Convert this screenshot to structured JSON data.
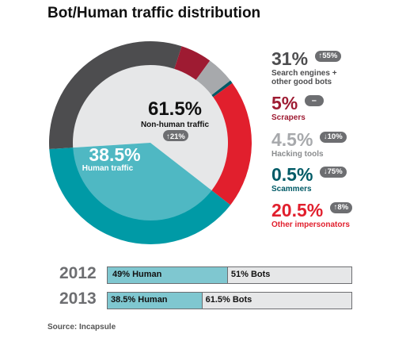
{
  "title": "Bot/Human traffic distribution",
  "chart_data": {
    "type": "pie",
    "title": "Bot/Human traffic distribution",
    "inner": [
      {
        "name": "Non-human traffic",
        "value": 61.5,
        "label": "61.5%",
        "change": "↑21%",
        "color": "#e6e7e8"
      },
      {
        "name": "Human traffic",
        "value": 38.5,
        "label": "38.5%",
        "color": "#4fb8c3"
      }
    ],
    "outer": [
      {
        "name": "Search engines + other good bots",
        "value": 31,
        "label": "31%",
        "change": "↑55%",
        "color": "#4d4d4f"
      },
      {
        "name": "Scrapers",
        "value": 5,
        "label": "5%",
        "change": "–",
        "color": "#9e1b32"
      },
      {
        "name": "Hacking tools",
        "value": 4.5,
        "label": "4.5%",
        "change": "↓10%",
        "color": "#a7a9ac"
      },
      {
        "name": "Scammers",
        "value": 0.5,
        "label": "0.5%",
        "change": "↓75%",
        "color": "#005a66"
      },
      {
        "name": "Other impersonators",
        "value": 20.5,
        "label": "20.5%",
        "change": "↑8%",
        "color": "#e11f2d"
      },
      {
        "name": "Human traffic",
        "value": 38.5,
        "color": "#009aa6"
      }
    ]
  },
  "legend": [
    {
      "pct": "31%",
      "change": "↑55%",
      "label_lines": [
        "Search engines +",
        "other good bots"
      ],
      "color": "#4d4d4f"
    },
    {
      "pct": "5%",
      "change": "–",
      "label_lines": [
        "Scrapers"
      ],
      "color": "#9e1b32"
    },
    {
      "pct": "4.5%",
      "change": "↓10%",
      "label_lines": [
        "Hacking tools"
      ],
      "color": "#a7a9ac"
    },
    {
      "pct": "0.5%",
      "change": "↓75%",
      "label_lines": [
        "Scammers"
      ],
      "color": "#005a66"
    },
    {
      "pct": "20.5%",
      "change": "↑8%",
      "label_lines": [
        "Other impersonators"
      ],
      "color": "#e11f2d"
    }
  ],
  "bars": [
    {
      "year": "2012",
      "human_label": "49% Human",
      "bots_label": "51% Bots",
      "human_pct": 49
    },
    {
      "year": "2013",
      "human_label": "38.5% Human",
      "bots_label": "61.5% Bots",
      "human_pct": 38.5
    }
  ],
  "source": "Source: Incapsule"
}
